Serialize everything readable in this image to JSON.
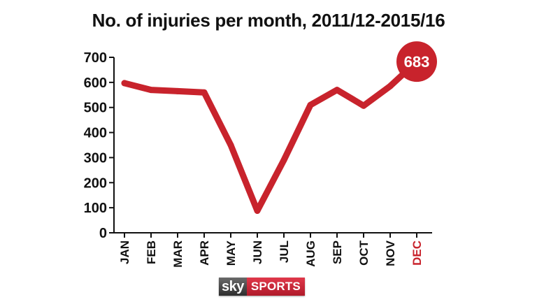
{
  "chart_data": {
    "type": "line",
    "title": "No. of injuries per month, 2011/12-2015/16",
    "categories": [
      "JAN",
      "FEB",
      "MAR",
      "APR",
      "MAY",
      "JUN",
      "JUL",
      "AUG",
      "SEP",
      "OCT",
      "NOV",
      "DEC"
    ],
    "series": [
      {
        "values": [
          597,
          570,
          565,
          560,
          350,
          88,
          290,
          510,
          570,
          507,
          585,
          683
        ]
      }
    ],
    "yticks": [
      0,
      100,
      200,
      300,
      400,
      500,
      600,
      700
    ],
    "ylim": [
      0,
      700
    ],
    "xlabel": "",
    "ylabel": "",
    "grid": false,
    "highlight": {
      "category": "DEC",
      "label": "683"
    },
    "colors": {
      "line": "#c8232c",
      "highlight": "#c8232c",
      "axis": "#111111"
    }
  },
  "branding": {
    "sky": "sky",
    "sports": "SPORTS"
  }
}
